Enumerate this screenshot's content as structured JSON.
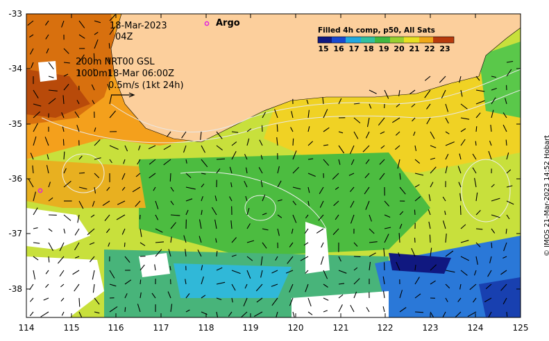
{
  "map": {
    "datetime_line1": "18-Mar-2023",
    "datetime_line2": "04Z",
    "argo_label": "Argo",
    "legend_line1": "200m  NRT00 GSL",
    "legend_line2": "1000m18-Mar 06:00Z",
    "velocity_scale": "0.5m/s (1kt 24h)",
    "credit": "© IMOS 21-Mar-2023 14:52 Hobart",
    "colorbar": {
      "title": "Filled 4h comp, p50, All Sats",
      "ticks": [
        "15",
        "16",
        "17",
        "18",
        "19",
        "20",
        "21",
        "22",
        "23"
      ]
    },
    "axes": {
      "x_ticks": [
        "114",
        "115",
        "116",
        "117",
        "118",
        "119",
        "120",
        "121",
        "122",
        "123",
        "124",
        "125"
      ],
      "y_ticks": [
        "-33",
        "-34",
        "-35",
        "-36",
        "-37",
        "-38"
      ]
    },
    "colors": {
      "land": "#fccf9c",
      "argo_marker": "#e020e0"
    }
  }
}
